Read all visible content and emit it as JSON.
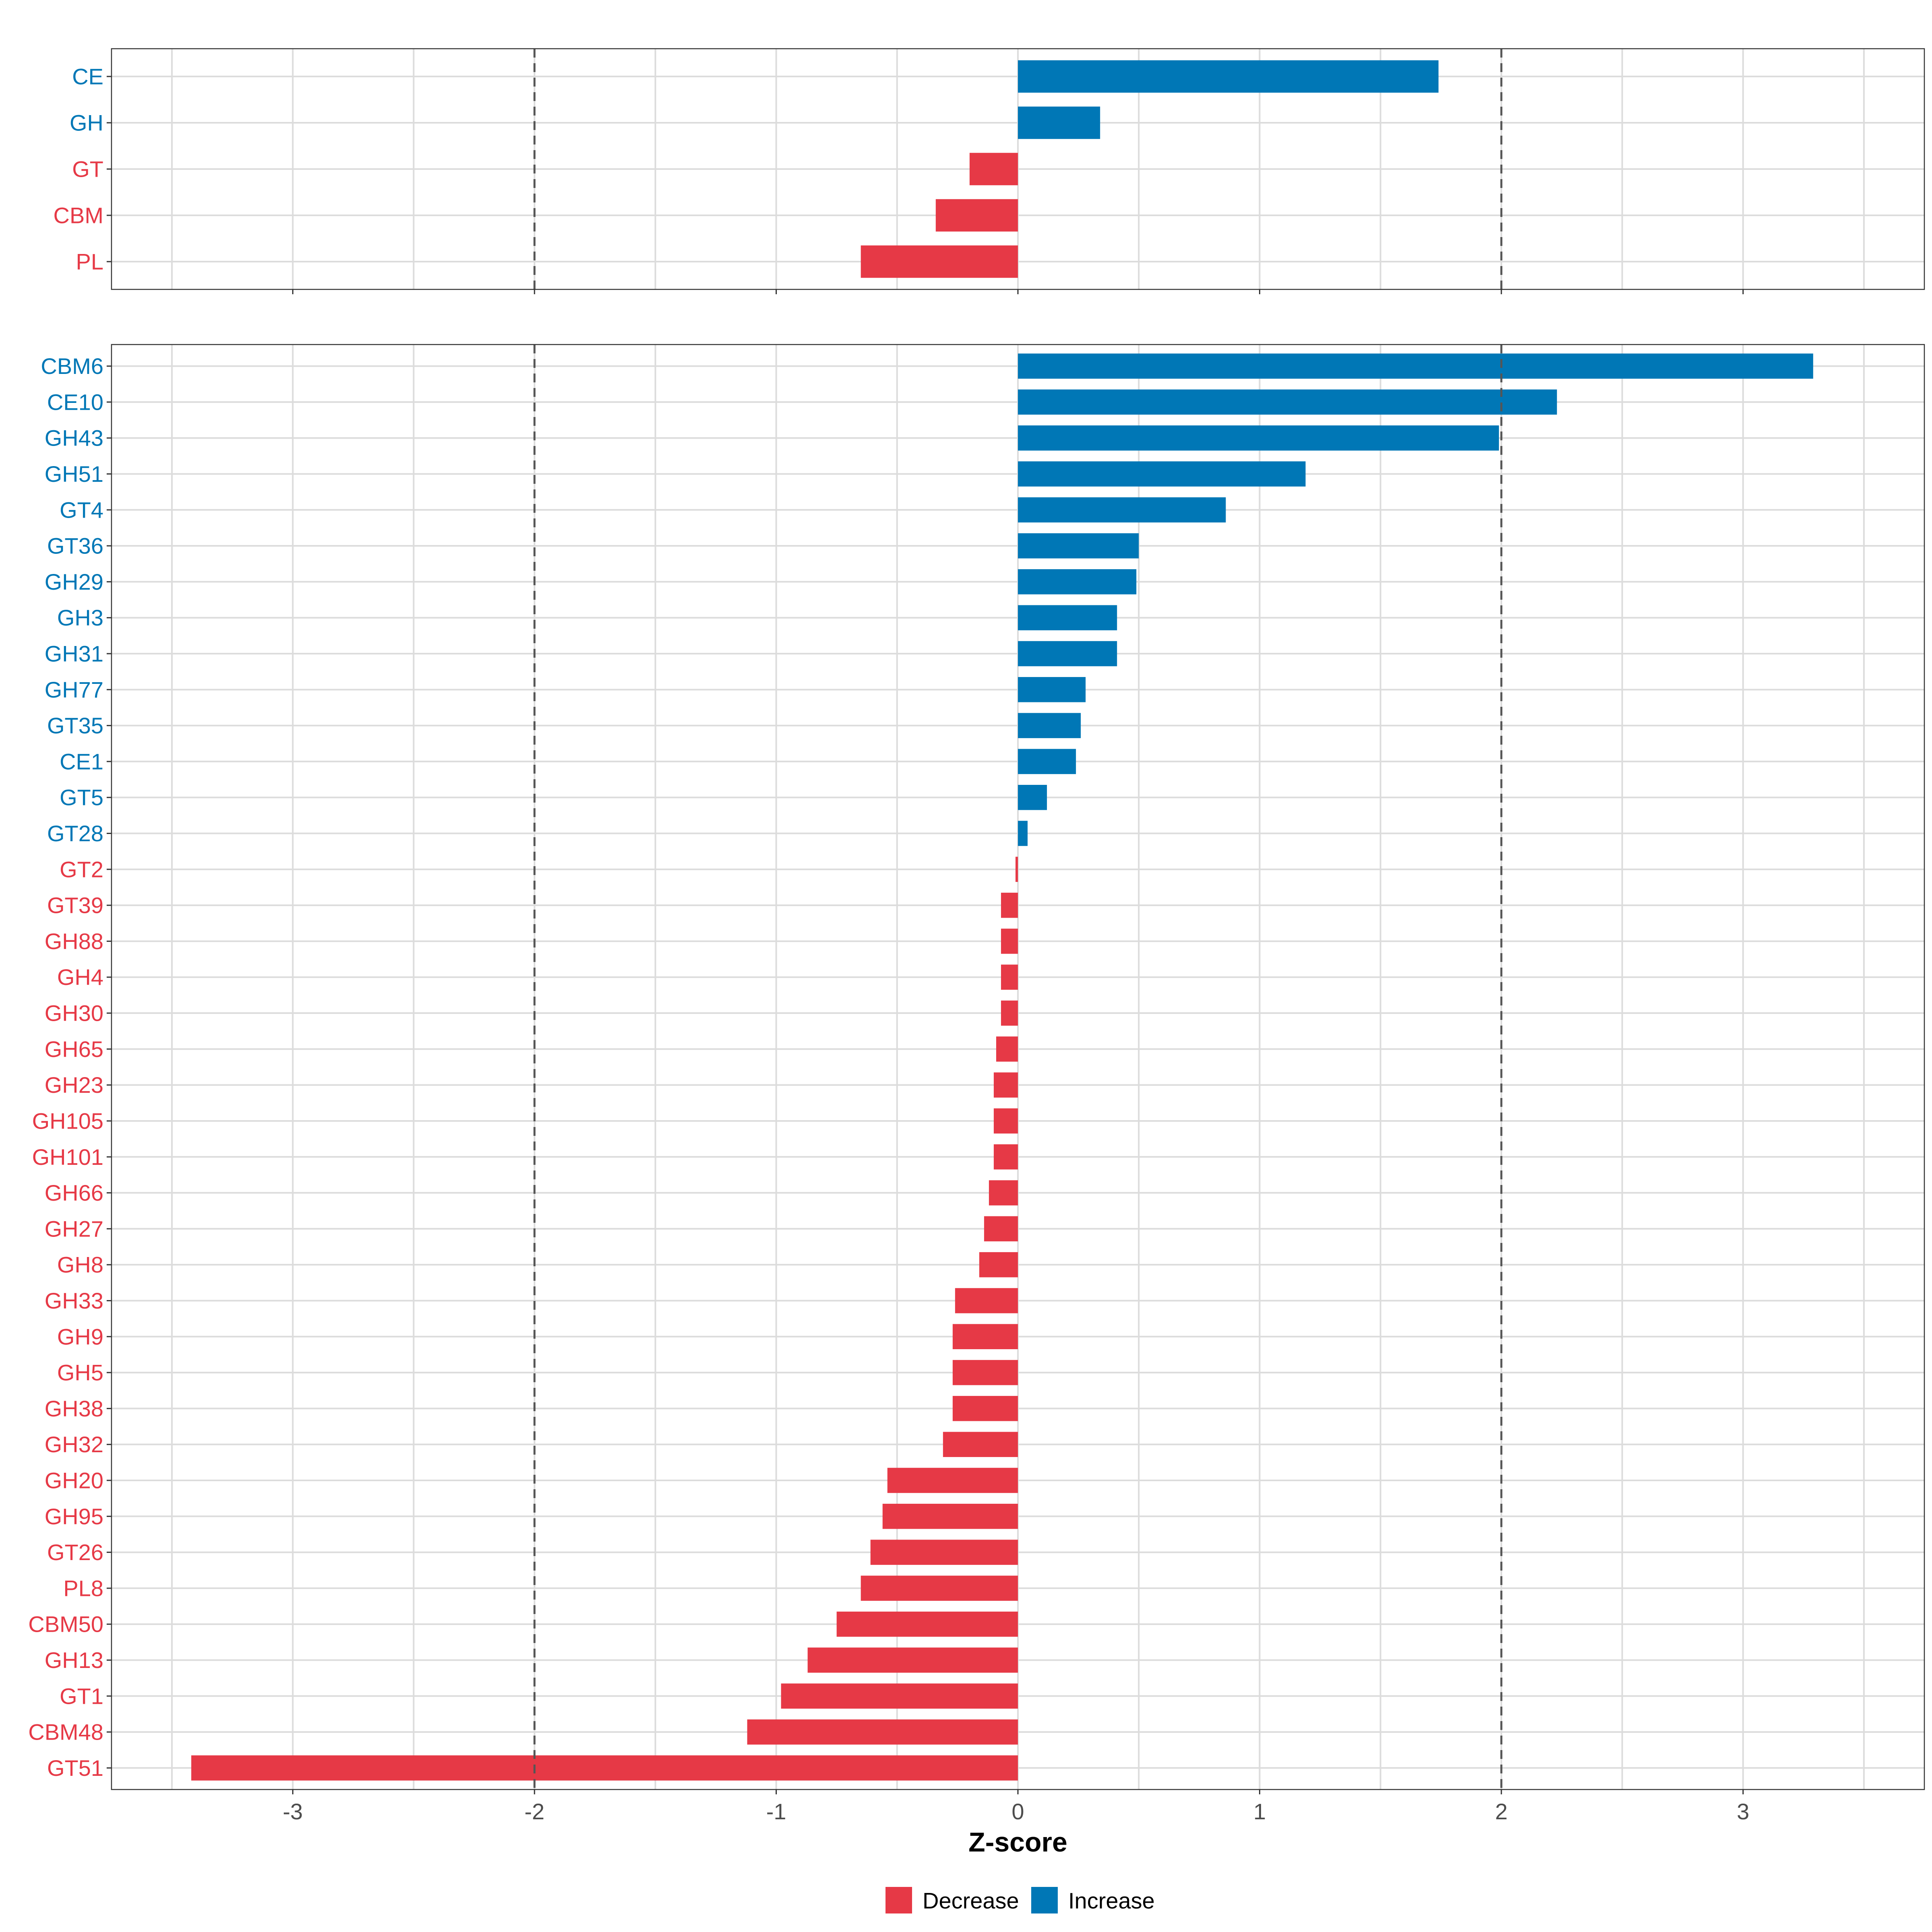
{
  "colors": {
    "increase": "#0077B6",
    "decrease": "#E63946",
    "panel_background": "#ffffff",
    "grid": "#dcdcdc",
    "reference_line": "#555555"
  },
  "chart_data": [
    {
      "type": "bar",
      "orientation": "horizontal",
      "panel": "top",
      "categories": [
        "CE",
        "GH",
        "GT",
        "CBM",
        "PL"
      ],
      "values": [
        1.74,
        0.34,
        -0.2,
        -0.34,
        -0.65
      ],
      "xlim": [
        -3.75,
        3.75
      ],
      "x_ticks": [
        -3,
        -2,
        -1,
        0,
        1,
        2,
        3
      ],
      "reference_lines": [
        -2,
        2
      ],
      "grid": true
    },
    {
      "type": "bar",
      "orientation": "horizontal",
      "panel": "bottom",
      "categories": [
        "CBM6",
        "CE10",
        "GH43",
        "GH51",
        "GT4",
        "GT36",
        "GH29",
        "GH3",
        "GH31",
        "GH77",
        "GT35",
        "CE1",
        "GT5",
        "GT28",
        "GT2",
        "GT39",
        "GH88",
        "GH4",
        "GH30",
        "GH65",
        "GH23",
        "GH105",
        "GH101",
        "GH66",
        "GH27",
        "GH8",
        "GH33",
        "GH9",
        "GH5",
        "GH38",
        "GH32",
        "GH20",
        "GH95",
        "GT26",
        "PL8",
        "CBM50",
        "GH13",
        "GT1",
        "CBM48",
        "GT51"
      ],
      "values": [
        3.29,
        2.23,
        1.99,
        1.19,
        0.86,
        0.5,
        0.49,
        0.41,
        0.41,
        0.28,
        0.26,
        0.24,
        0.12,
        0.04,
        -0.01,
        -0.07,
        -0.07,
        -0.07,
        -0.07,
        -0.09,
        -0.1,
        -0.1,
        -0.1,
        -0.12,
        -0.14,
        -0.16,
        -0.26,
        -0.27,
        -0.27,
        -0.27,
        -0.31,
        -0.54,
        -0.56,
        -0.61,
        -0.65,
        -0.75,
        -0.87,
        -0.98,
        -1.12,
        -3.42
      ],
      "xlim": [
        -3.75,
        3.75
      ],
      "x_ticks": [
        -3,
        -2,
        -1,
        0,
        1,
        2,
        3
      ],
      "x_tick_labels": [
        "-3",
        "-2",
        "-1",
        "0",
        "1",
        "2",
        "3"
      ],
      "xlabel": "Z-score",
      "reference_lines": [
        -2,
        2
      ],
      "grid": true
    }
  ],
  "legend": {
    "position": "bottom",
    "items": [
      {
        "label": "Decrease",
        "color": "#E63946"
      },
      {
        "label": "Increase",
        "color": "#0077B6"
      }
    ]
  }
}
